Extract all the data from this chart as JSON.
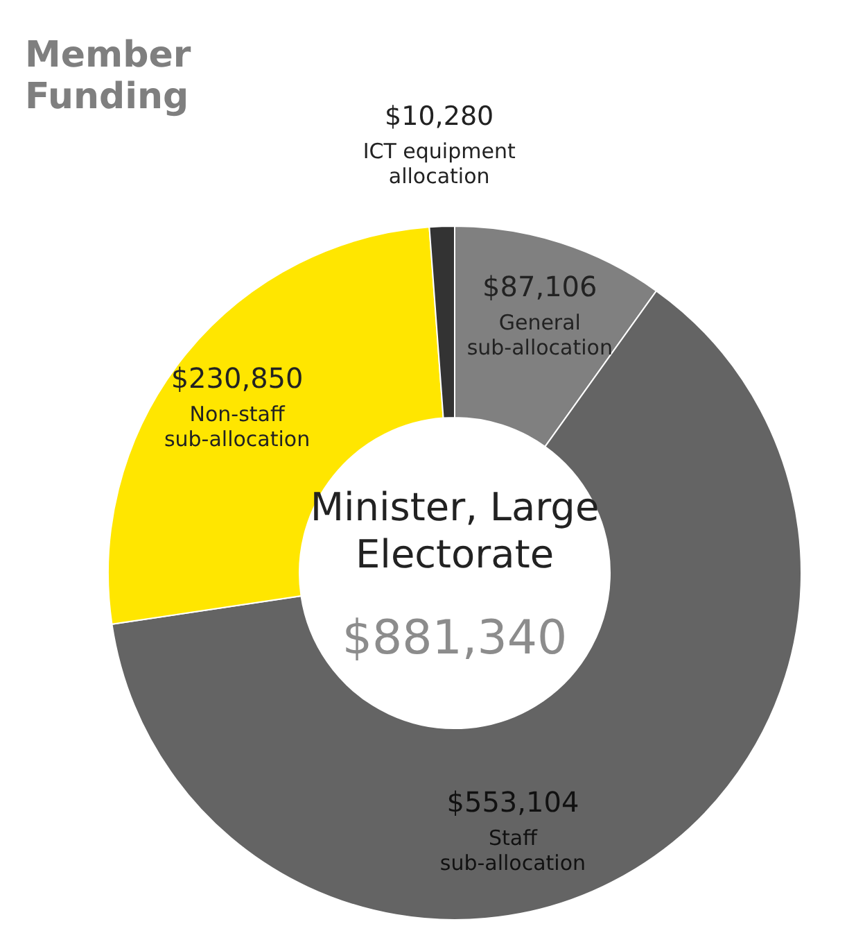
{
  "chart_data": {
    "type": "donut",
    "title": "Member Funding",
    "subtitle": "Minister, Large Electorate",
    "annotations": [
      "$881,340"
    ],
    "categories": [
      "General sub-allocation",
      "Staff sub-allocation",
      "Non-staff sub-allocation",
      "ICT equipment allocation"
    ],
    "values": [
      87106,
      553104,
      230850,
      10280
    ],
    "value_labels": [
      "$87,106",
      "$553,104",
      "$230,850",
      "$10,280"
    ],
    "colors": [
      "#808080",
      "#646464",
      "#ffe600",
      "#333333"
    ]
  }
}
